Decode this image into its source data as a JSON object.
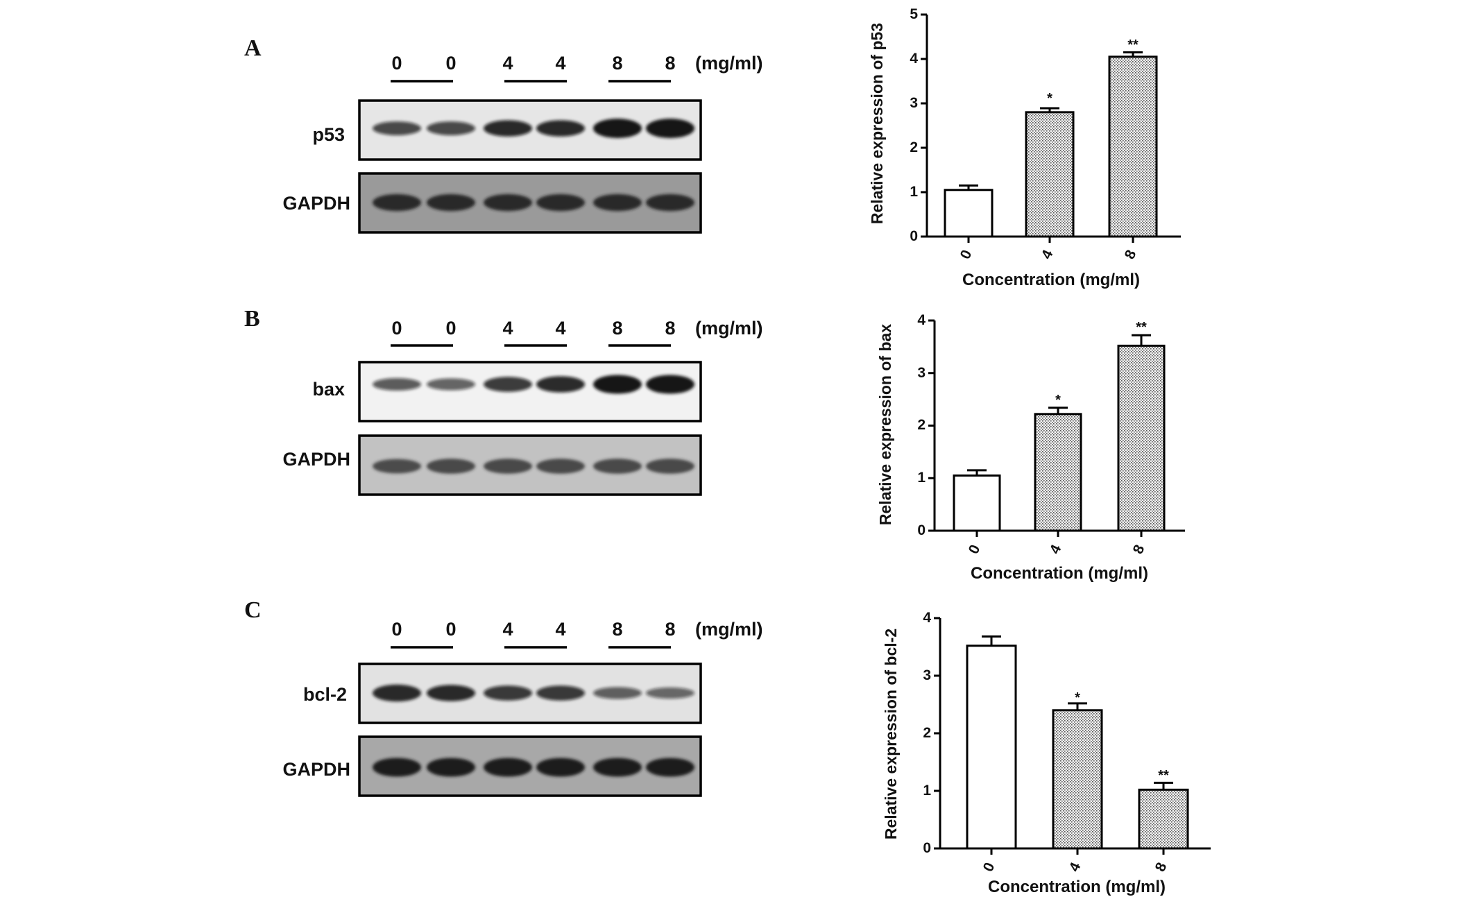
{
  "panels": [
    {
      "label": "A",
      "lane_labels": [
        "0",
        "0",
        "4",
        "4",
        "8",
        "8"
      ],
      "unit": "(mg/ml)",
      "blots": [
        {
          "name": "p53",
          "background": "#e6e6e6",
          "band_color": "#141414",
          "band_intensity": [
            0.55,
            0.55,
            0.75,
            0.75,
            1.0,
            1.0
          ]
        },
        {
          "name": "GAPDH",
          "background": "#9a9a9a",
          "band_color": "#1c1c1c",
          "band_intensity": [
            0.8,
            0.8,
            0.8,
            0.8,
            0.8,
            0.8
          ]
        }
      ]
    },
    {
      "label": "B",
      "lane_labels": [
        "0",
        "0",
        "4",
        "4",
        "8",
        "8"
      ],
      "unit": "(mg/ml)",
      "blots": [
        {
          "name": "bax",
          "background": "#f2f2f2",
          "band_color": "#141414",
          "band_intensity": [
            0.45,
            0.4,
            0.65,
            0.75,
            0.95,
            0.95
          ]
        },
        {
          "name": "GAPDH",
          "background": "#c2c2c2",
          "band_color": "#2a2a2a",
          "band_intensity": [
            0.6,
            0.65,
            0.65,
            0.65,
            0.65,
            0.65
          ]
        }
      ]
    },
    {
      "label": "C",
      "lane_labels": [
        "0",
        "0",
        "4",
        "4",
        "8",
        "8"
      ],
      "unit": "(mg/ml)",
      "blots": [
        {
          "name": "bcl-2",
          "background": "#e2e2e2",
          "band_color": "#141414",
          "band_intensity": [
            0.8,
            0.75,
            0.65,
            0.65,
            0.4,
            0.35
          ]
        },
        {
          "name": "GAPDH",
          "background": "#a8a8a8",
          "band_color": "#1a1a1a",
          "band_intensity": [
            0.95,
            0.95,
            0.95,
            0.95,
            0.95,
            0.95
          ]
        }
      ]
    }
  ],
  "chart_data": [
    {
      "type": "bar",
      "panel": "A",
      "categories": [
        "0",
        "4",
        "8"
      ],
      "values": [
        1.05,
        2.8,
        4.05
      ],
      "errors": [
        0.1,
        0.09,
        0.1
      ],
      "annotations": [
        "",
        "*",
        "**"
      ],
      "fills": [
        "white",
        "dotted",
        "dotted"
      ],
      "ylabel": "Relative expression of p53",
      "xlabel": "Concentration (mg/ml)",
      "ylim": [
        0,
        5
      ],
      "yticks": [
        0,
        1,
        2,
        3,
        4,
        5
      ],
      "grid": false
    },
    {
      "type": "bar",
      "panel": "B",
      "categories": [
        "0",
        "4",
        "8"
      ],
      "values": [
        1.05,
        2.22,
        3.52
      ],
      "errors": [
        0.1,
        0.12,
        0.2
      ],
      "annotations": [
        "",
        "*",
        "**"
      ],
      "fills": [
        "white",
        "dotted",
        "dotted"
      ],
      "ylabel": "Relative expression of bax",
      "xlabel": "Concentration (mg/ml)",
      "ylim": [
        0,
        4
      ],
      "yticks": [
        0,
        1,
        2,
        3,
        4
      ],
      "grid": false
    },
    {
      "type": "bar",
      "panel": "C",
      "categories": [
        "0",
        "4",
        "8"
      ],
      "values": [
        3.52,
        2.4,
        1.02
      ],
      "errors": [
        0.16,
        0.12,
        0.12
      ],
      "annotations": [
        "",
        "*",
        "**"
      ],
      "fills": [
        "white",
        "dotted",
        "dotted"
      ],
      "ylabel": "Relative expression of bcl-2",
      "xlabel": "Concentration (mg/ml)",
      "ylim": [
        0,
        4
      ],
      "yticks": [
        0,
        1,
        2,
        3,
        4
      ],
      "grid": false
    }
  ]
}
